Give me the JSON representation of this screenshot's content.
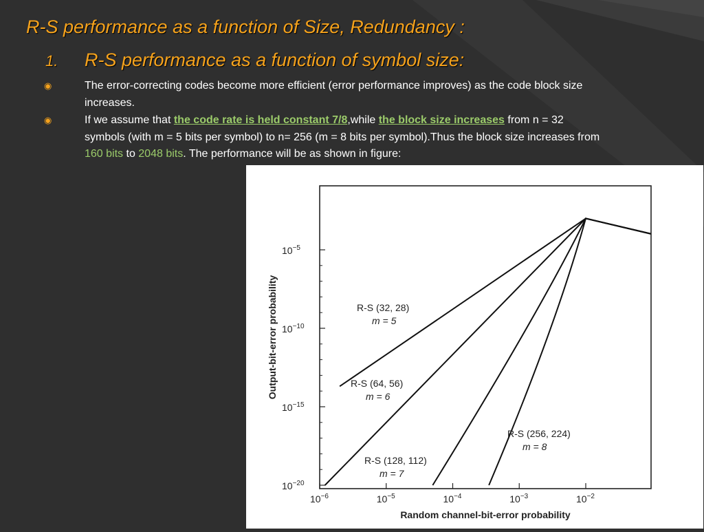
{
  "slide": {
    "title": "R-S performance as a function of Size, Redundancy :",
    "sub_number": "1.",
    "subtitle": "R-S performance as a function of symbol size:",
    "bullet1": "The error-correcting codes become more efficient (error performance improves) as the code block size increases.",
    "bullet2": {
      "t1": "If we assume that ",
      "h1": "the code rate is held constant 7/8",
      "t2": ",while ",
      "h2": "the block size increases",
      "t3": " from n = 32 symbols (with m = 5 bits per symbol) to n= 256 (m = 8 bits per symbol).Thus the block size increases from ",
      "h3": "160 bits",
      "t4": " to ",
      "h4": "2048 bits",
      "t5": ". The performance will be as shown in figure:"
    },
    "bullet_icon": "circled-dot-bullet-icon",
    "colors": {
      "accent": "#f5a21c",
      "highlight": "#9bcb6a",
      "background": "#2f2f2f"
    }
  },
  "chart_data": {
    "type": "line",
    "xlabel": "Random channel-bit-error probability",
    "ylabel": "Output-bit-error probability",
    "x_scale": "log",
    "y_scale": "log",
    "xlim": [
      1e-06,
      0.1
    ],
    "ylim": [
      1e-20,
      0.0001
    ],
    "x_ticks": [
      {
        "value": 1e-06,
        "mant": "10",
        "exp": "−6"
      },
      {
        "value": 1e-05,
        "mant": "10",
        "exp": "−5"
      },
      {
        "value": 0.0001,
        "mant": "10",
        "exp": "−4"
      },
      {
        "value": 0.001,
        "mant": "10",
        "exp": "−3"
      },
      {
        "value": 0.01,
        "mant": "10",
        "exp": "−2"
      }
    ],
    "y_ticks": [
      {
        "value": 1e-05,
        "mant": "10",
        "exp": "−5"
      },
      {
        "value": 1e-10,
        "mant": "10",
        "exp": "−10"
      },
      {
        "value": 1e-15,
        "mant": "10",
        "exp": "−15"
      },
      {
        "value": 1e-20,
        "mant": "10",
        "exp": "−20"
      }
    ],
    "series": [
      {
        "name": "R-S (32, 28)",
        "label2": "m = 5",
        "x": [
          2e-06,
          0.01,
          0.1
        ],
        "y": [
          2e-14,
          0.001,
          0.0001
        ]
      },
      {
        "name": "R-S (64, 56)",
        "label2": "m = 6",
        "x": [
          1.2e-06,
          0.01,
          0.1
        ],
        "y": [
          1e-20,
          0.001,
          0.0001
        ]
      },
      {
        "name": "R-S (128, 112)",
        "label2": "m = 7",
        "x": [
          5e-05,
          0.002,
          0.01,
          0.1
        ],
        "y": [
          1e-20,
          1e-09,
          0.001,
          0.0001
        ]
      },
      {
        "name": "R-S (256, 224)",
        "label2": "m = 8",
        "x": [
          0.00035,
          0.0035,
          0.01,
          0.1
        ],
        "y": [
          1e-20,
          1e-10,
          0.001,
          0.0001
        ]
      }
    ]
  }
}
